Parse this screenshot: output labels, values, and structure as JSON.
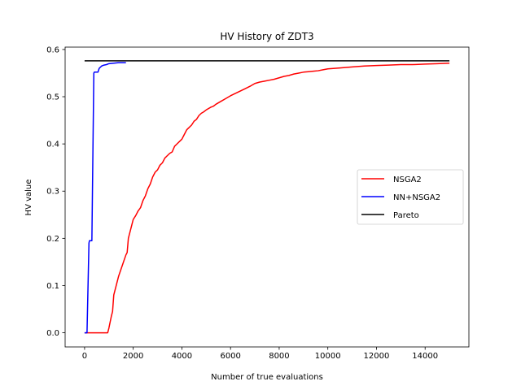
{
  "chart_data": {
    "type": "line",
    "title": "HV History of ZDT3",
    "xlabel": "Number of true evaluations",
    "ylabel": "HV value",
    "xlim": [
      -800,
      15800
    ],
    "ylim": [
      -0.03,
      0.605
    ],
    "xticks": [
      0,
      2000,
      4000,
      6000,
      8000,
      10000,
      12000,
      14000
    ],
    "xtick_labels": [
      "0",
      "2000",
      "4000",
      "6000",
      "8000",
      "10000",
      "12000",
      "14000"
    ],
    "yticks": [
      0.0,
      0.1,
      0.2,
      0.3,
      0.4,
      0.5,
      0.6
    ],
    "ytick_labels": [
      "0.0",
      "0.1",
      "0.2",
      "0.3",
      "0.4",
      "0.5",
      "0.6"
    ],
    "grid": false,
    "legend_position": "center-right",
    "series": [
      {
        "name": "NSGA2",
        "color": "#ff0000",
        "x": [
          0,
          100,
          200,
          300,
          400,
          500,
          600,
          700,
          800,
          900,
          950,
          1000,
          1100,
          1150,
          1200,
          1300,
          1400,
          1500,
          1600,
          1700,
          1750,
          1800,
          1900,
          2000,
          2100,
          2200,
          2300,
          2400,
          2500,
          2600,
          2700,
          2800,
          2900,
          3000,
          3100,
          3200,
          3300,
          3400,
          3500,
          3600,
          3700,
          3800,
          3900,
          4000,
          4100,
          4200,
          4300,
          4400,
          4500,
          4600,
          4700,
          4800,
          4900,
          5000,
          5100,
          5200,
          5300,
          5400,
          5500,
          5600,
          5800,
          6000,
          6200,
          6400,
          6600,
          6800,
          7000,
          7200,
          7400,
          7600,
          7800,
          8000,
          8200,
          8400,
          8600,
          8800,
          9000,
          9200,
          9400,
          9600,
          9800,
          10000,
          10500,
          11000,
          11500,
          12000,
          12500,
          13000,
          13500,
          14000,
          14500,
          15000
        ],
        "y": [
          0.0,
          0.0,
          0.0,
          0.0,
          0.0,
          0.0,
          0.0,
          0.0,
          0.0,
          0.0,
          0.0,
          0.01,
          0.035,
          0.045,
          0.08,
          0.1,
          0.12,
          0.135,
          0.15,
          0.165,
          0.17,
          0.2,
          0.22,
          0.24,
          0.248,
          0.258,
          0.265,
          0.28,
          0.29,
          0.305,
          0.315,
          0.33,
          0.34,
          0.345,
          0.355,
          0.36,
          0.37,
          0.375,
          0.38,
          0.383,
          0.395,
          0.4,
          0.405,
          0.41,
          0.42,
          0.43,
          0.435,
          0.44,
          0.448,
          0.452,
          0.46,
          0.465,
          0.468,
          0.472,
          0.475,
          0.478,
          0.48,
          0.484,
          0.487,
          0.49,
          0.496,
          0.502,
          0.507,
          0.512,
          0.517,
          0.522,
          0.528,
          0.531,
          0.533,
          0.535,
          0.537,
          0.54,
          0.543,
          0.545,
          0.548,
          0.55,
          0.552,
          0.553,
          0.554,
          0.555,
          0.557,
          0.559,
          0.561,
          0.563,
          0.565,
          0.566,
          0.567,
          0.568,
          0.568,
          0.569,
          0.57,
          0.571
        ]
      },
      {
        "name": "NN+NSGA2",
        "color": "#0000ff",
        "x": [
          0,
          100,
          180,
          200,
          280,
          300,
          380,
          400,
          500,
          550,
          600,
          700,
          800,
          900,
          1000,
          1200,
          1400,
          1600,
          1700
        ],
        "y": [
          0.0,
          0.0,
          0.19,
          0.195,
          0.195,
          0.195,
          0.55,
          0.552,
          0.552,
          0.552,
          0.56,
          0.565,
          0.567,
          0.568,
          0.57,
          0.571,
          0.572,
          0.572,
          0.572
        ]
      },
      {
        "name": "Pareto",
        "color": "#000000",
        "x": [
          0,
          15000
        ],
        "y": [
          0.576,
          0.576
        ]
      }
    ]
  }
}
